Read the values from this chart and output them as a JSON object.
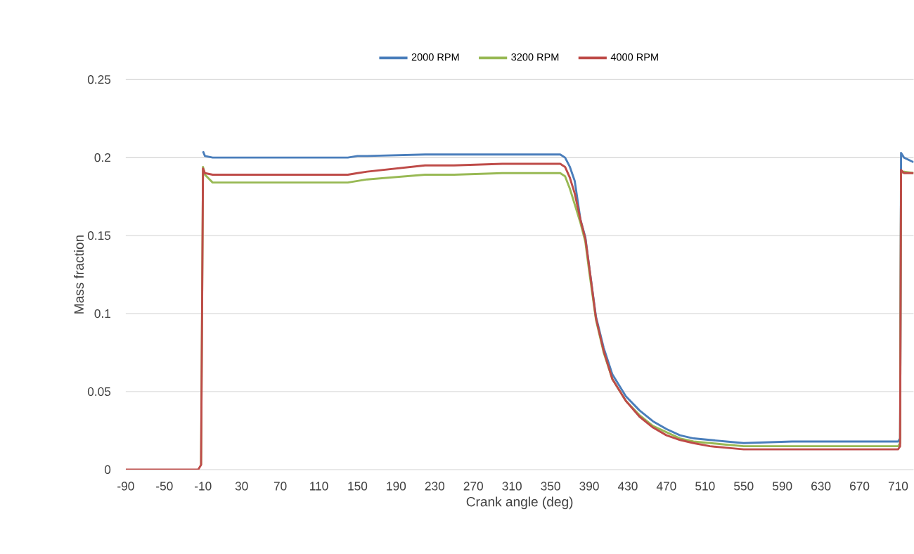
{
  "chart_data": {
    "type": "line",
    "xlabel": "Crank angle (deg)",
    "ylabel": "Mass fraction",
    "x": [
      -90,
      -15,
      -12,
      -10,
      -8,
      0,
      140,
      150,
      160,
      220,
      250,
      300,
      360,
      365,
      370,
      375,
      381,
      386,
      390,
      397,
      405,
      414,
      428,
      442,
      456,
      470,
      484,
      498,
      515,
      532,
      550,
      600,
      700,
      710,
      712,
      713,
      716,
      726
    ],
    "series": [
      {
        "name": "2000 RPM",
        "color": "#4a7ebb",
        "values": [
          null,
          null,
          null,
          0.204,
          0.201,
          0.2,
          0.2,
          0.201,
          0.201,
          0.202,
          0.202,
          0.202,
          0.202,
          0.2,
          0.194,
          0.185,
          0.16,
          0.149,
          0.13,
          0.098,
          0.078,
          0.061,
          0.047,
          0.038,
          0.031,
          0.026,
          0.022,
          0.02,
          0.019,
          0.018,
          0.017,
          0.018,
          0.018,
          0.018,
          0.02,
          0.203,
          0.2,
          0.197
        ]
      },
      {
        "name": "3200 RPM",
        "color": "#98b954",
        "values": [
          null,
          null,
          0.003,
          0.194,
          0.189,
          0.184,
          0.184,
          0.185,
          0.186,
          0.189,
          0.189,
          0.19,
          0.19,
          0.188,
          0.18,
          0.17,
          0.158,
          0.146,
          0.127,
          0.096,
          0.075,
          0.058,
          0.044,
          0.035,
          0.028,
          0.024,
          0.02,
          0.018,
          0.017,
          0.016,
          0.015,
          0.015,
          0.015,
          0.015,
          0.017,
          0.19,
          0.191,
          0.19
        ]
      },
      {
        "name": "4000 RPM",
        "color": "#be4b48",
        "values": [
          0,
          0,
          0.003,
          0.193,
          0.19,
          0.189,
          0.189,
          0.19,
          0.191,
          0.195,
          0.195,
          0.196,
          0.196,
          0.194,
          0.187,
          0.177,
          0.16,
          0.148,
          0.13,
          0.097,
          0.076,
          0.058,
          0.044,
          0.034,
          0.027,
          0.022,
          0.019,
          0.017,
          0.015,
          0.014,
          0.013,
          0.013,
          0.013,
          0.013,
          0.015,
          0.192,
          0.19,
          0.19
        ]
      }
    ],
    "xlim": [
      -90,
      726
    ],
    "ylim": [
      0,
      0.25
    ],
    "xticks": [
      -90,
      -50,
      -10,
      30,
      70,
      110,
      150,
      190,
      230,
      270,
      310,
      350,
      390,
      430,
      470,
      510,
      550,
      590,
      630,
      670,
      710
    ],
    "yticks": [
      0,
      0.05,
      0.1,
      0.15,
      0.2,
      0.25
    ],
    "grid": "y",
    "legend": "top",
    "marker": "none",
    "line_style": "solid"
  }
}
